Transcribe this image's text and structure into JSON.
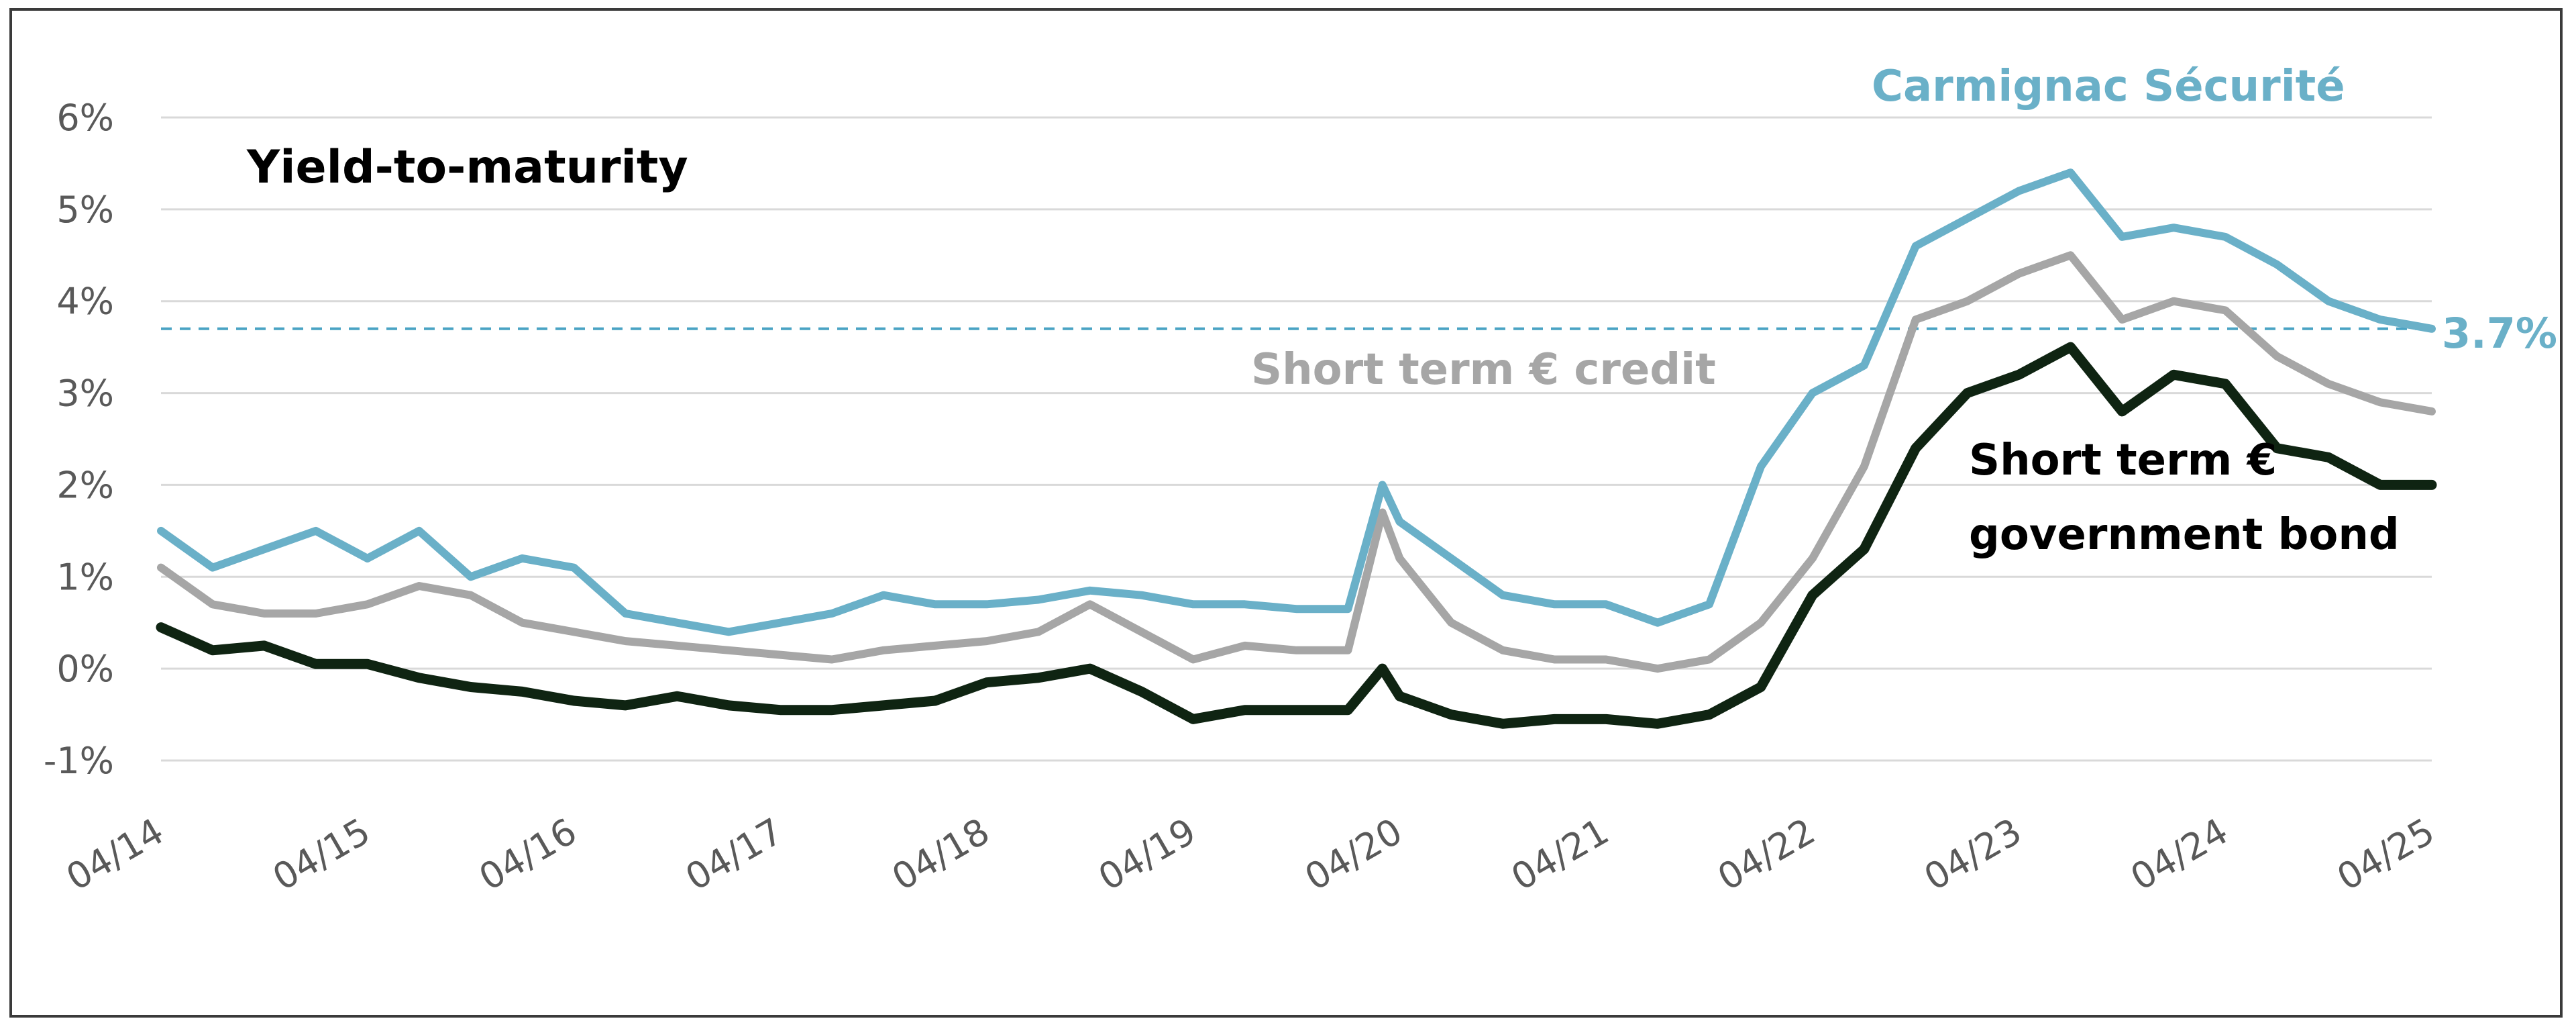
{
  "chart_data": {
    "type": "line",
    "title": "Yield-to-maturity",
    "xlabel": "",
    "ylabel": "",
    "x_ticks": [
      "04/14",
      "04/15",
      "04/16",
      "04/17",
      "04/18",
      "04/19",
      "04/20",
      "04/21",
      "04/22",
      "04/23",
      "04/24",
      "04/25"
    ],
    "y_ticks": [
      "-1%",
      "0%",
      "1%",
      "2%",
      "3%",
      "4%",
      "5%",
      "6%"
    ],
    "ylim": [
      -1,
      6
    ],
    "xlim": [
      "2014-04",
      "2025-04"
    ],
    "grid": true,
    "x": [
      "2014-04",
      "2014-07",
      "2014-10",
      "2015-01",
      "2015-04",
      "2015-07",
      "2015-10",
      "2016-01",
      "2016-04",
      "2016-07",
      "2016-10",
      "2017-01",
      "2017-04",
      "2017-07",
      "2017-10",
      "2018-01",
      "2018-04",
      "2018-07",
      "2018-10",
      "2019-01",
      "2019-04",
      "2019-07",
      "2019-10",
      "2020-01",
      "2020-03",
      "2020-04",
      "2020-07",
      "2020-10",
      "2021-01",
      "2021-04",
      "2021-07",
      "2021-10",
      "2022-01",
      "2022-04",
      "2022-07",
      "2022-10",
      "2023-01",
      "2023-04",
      "2023-07",
      "2023-10",
      "2024-01",
      "2024-04",
      "2024-07",
      "2024-10",
      "2025-01",
      "2025-04"
    ],
    "series": [
      {
        "name": "Carmignac Sécurité",
        "color": "#6ab0c8",
        "values": [
          1.5,
          1.1,
          1.3,
          1.5,
          1.2,
          1.5,
          1.0,
          1.2,
          1.1,
          0.6,
          0.5,
          0.4,
          0.5,
          0.6,
          0.8,
          0.7,
          0.7,
          0.75,
          0.85,
          0.8,
          0.7,
          0.7,
          0.65,
          0.65,
          2.0,
          1.6,
          1.2,
          0.8,
          0.7,
          0.7,
          0.5,
          0.7,
          2.2,
          3.0,
          3.3,
          4.6,
          4.9,
          5.2,
          5.4,
          4.7,
          4.8,
          4.7,
          4.4,
          4.0,
          3.8,
          3.7
        ]
      },
      {
        "name": "Short term € credit",
        "color": "#a6a6a6",
        "values": [
          1.1,
          0.7,
          0.6,
          0.6,
          0.7,
          0.9,
          0.8,
          0.5,
          0.4,
          0.3,
          0.25,
          0.2,
          0.15,
          0.1,
          0.2,
          0.25,
          0.3,
          0.4,
          0.7,
          0.4,
          0.1,
          0.25,
          0.2,
          0.2,
          1.7,
          1.2,
          0.5,
          0.2,
          0.1,
          0.1,
          0.0,
          0.1,
          0.5,
          1.2,
          2.2,
          3.8,
          4.0,
          4.3,
          4.5,
          3.8,
          4.0,
          3.9,
          3.4,
          3.1,
          2.9,
          2.8
        ]
      },
      {
        "name": "Short term € government bond",
        "color": "#0f2412",
        "values": [
          0.45,
          0.2,
          0.25,
          0.05,
          0.05,
          -0.1,
          -0.2,
          -0.25,
          -0.35,
          -0.4,
          -0.3,
          -0.4,
          -0.45,
          -0.45,
          -0.4,
          -0.35,
          -0.15,
          -0.1,
          0.0,
          -0.25,
          -0.55,
          -0.45,
          -0.45,
          -0.45,
          0.0,
          -0.3,
          -0.5,
          -0.6,
          -0.55,
          -0.55,
          -0.6,
          -0.5,
          -0.2,
          0.8,
          1.3,
          2.4,
          3.0,
          3.2,
          3.5,
          2.8,
          3.2,
          3.1,
          2.4,
          2.3,
          2.0,
          2.0
        ]
      }
    ],
    "reference_line": {
      "value": 3.7,
      "label": "3.7%",
      "color": "#4aa3c4",
      "style": "dashed"
    },
    "annotations": {
      "carmignac": "Carmignac Sécurité",
      "credit": "Short term € credit",
      "gov_line1": "Short term €",
      "gov_line2": "government bond"
    }
  }
}
